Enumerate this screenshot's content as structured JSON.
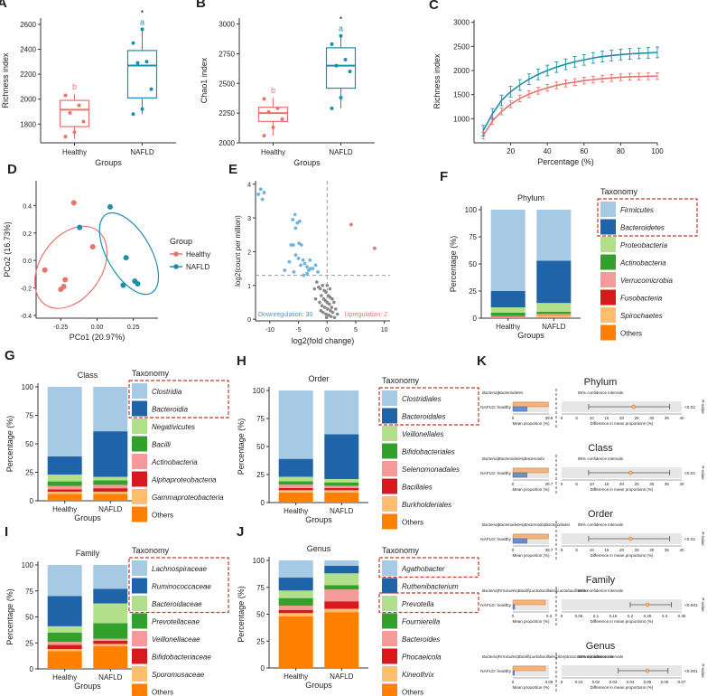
{
  "colors": {
    "healthy": "#e8746e",
    "nafld": "#1a8fad",
    "grey": "#888888",
    "dashbox": "#c0392b"
  },
  "panelA": {
    "letter": "A",
    "ylabel": "Richness index",
    "xlabel": "Groups",
    "ylim": [
      1650,
      2650
    ],
    "yticks": [
      1800,
      2000,
      2200,
      2400,
      2600
    ],
    "categories": [
      "Healthy",
      "NAFLD"
    ],
    "boxes": [
      {
        "q1": 1780,
        "median": 1915,
        "q3": 1990,
        "min": 1680,
        "max": 2040,
        "points": [
          1700,
          1735,
          1820,
          1890,
          1950,
          2030
        ]
      },
      {
        "q1": 2010,
        "median": 2270,
        "q3": 2390,
        "min": 1880,
        "max": 2560,
        "points": [
          1880,
          1920,
          2080,
          2290,
          2300,
          2450,
          2560
        ]
      }
    ],
    "sig_letters": [
      "b",
      "a"
    ],
    "star": "*"
  },
  "panelB": {
    "letter": "B",
    "ylabel": "Chao1 index",
    "xlabel": "Groups",
    "ylim": [
      2000,
      3050
    ],
    "yticks": [
      2000,
      2250,
      2500,
      2750,
      3000
    ],
    "categories": [
      "Healthy",
      "NAFLD"
    ],
    "boxes": [
      {
        "q1": 2180,
        "median": 2250,
        "q3": 2300,
        "min": 2060,
        "max": 2380,
        "points": [
          2060,
          2130,
          2200,
          2260,
          2290,
          2370
        ]
      },
      {
        "q1": 2460,
        "median": 2650,
        "q3": 2800,
        "min": 2290,
        "max": 2900,
        "points": [
          2290,
          2380,
          2600,
          2650,
          2700,
          2830,
          2900
        ]
      }
    ],
    "sig_letters": [
      "b",
      "a"
    ],
    "star": "*"
  },
  "panelC": {
    "letter": "C",
    "ylabel": "Richness index",
    "xlabel": "Percentage (%)",
    "xlim": [
      0,
      100
    ],
    "ylim": [
      500,
      3050
    ],
    "xticks": [
      20,
      40,
      60,
      80,
      100
    ],
    "yticks": [
      1000,
      1500,
      2000,
      2500,
      3000
    ],
    "x": [
      5,
      10,
      15,
      20,
      25,
      30,
      35,
      40,
      45,
      50,
      55,
      60,
      65,
      70,
      75,
      80,
      85,
      90,
      95,
      100
    ],
    "series": [
      {
        "name": "Healthy",
        "values": [
          650,
          950,
          1150,
          1300,
          1420,
          1510,
          1580,
          1640,
          1690,
          1730,
          1760,
          1790,
          1810,
          1830,
          1845,
          1860,
          1870,
          1875,
          1880,
          1885
        ],
        "err": 70
      },
      {
        "name": "NAFLD",
        "values": [
          750,
          1100,
          1380,
          1560,
          1700,
          1820,
          1920,
          2000,
          2070,
          2130,
          2180,
          2220,
          2260,
          2290,
          2310,
          2330,
          2345,
          2355,
          2365,
          2375
        ],
        "err": 110
      }
    ]
  },
  "panelD": {
    "letter": "D",
    "xlabel": "PCo1 (20.97%)",
    "ylabel": "PCo2 (16.73%)",
    "xlim": [
      -0.42,
      0.42
    ],
    "ylim": [
      -0.42,
      0.58
    ],
    "xticks": [
      -0.25,
      0,
      0.25
    ],
    "xtick_labels": [
      "-0.25",
      "0.00",
      "0.25"
    ],
    "yticks": [
      -0.4,
      -0.2,
      0,
      0.2,
      0.4
    ],
    "ytick_labels": [
      "-0.4",
      "-0.2",
      "0.0",
      "0.2",
      "0.4"
    ],
    "legend_title": "Group",
    "legend": [
      "Healthy",
      "NAFLD"
    ],
    "points": [
      {
        "g": 0,
        "x": -0.36,
        "y": -0.07
      },
      {
        "g": 0,
        "x": -0.22,
        "y": -0.14
      },
      {
        "g": 0,
        "x": -0.23,
        "y": -0.19
      },
      {
        "g": 0,
        "x": -0.25,
        "y": -0.21
      },
      {
        "g": 0,
        "x": -0.03,
        "y": 0.1
      },
      {
        "g": 0,
        "x": -0.16,
        "y": 0.42
      },
      {
        "g": 1,
        "x": -0.12,
        "y": 0.24
      },
      {
        "g": 1,
        "x": 0.09,
        "y": 0.39
      },
      {
        "g": 1,
        "x": 0.2,
        "y": 0.02
      },
      {
        "g": 1,
        "x": 0.26,
        "y": -0.15
      },
      {
        "g": 1,
        "x": 0.28,
        "y": -0.17
      },
      {
        "g": 1,
        "x": 0.18,
        "y": -0.18
      }
    ],
    "ellipses": [
      {
        "g": 0,
        "cx": -0.18,
        "cy": -0.05,
        "rx": 0.21,
        "ry": 0.33,
        "angle": 35
      },
      {
        "g": 1,
        "cx": 0.22,
        "cy": 0.05,
        "rx": 0.15,
        "ry": 0.33,
        "angle": -30
      }
    ]
  },
  "panelE": {
    "letter": "E",
    "xlabel": "log2(fold change)",
    "ylabel": "log2(count per million)",
    "xlim": [
      -12.5,
      11
    ],
    "ylim": [
      -0.05,
      4.1
    ],
    "xticks": [
      -10,
      -5,
      0,
      5,
      10
    ],
    "yticks": [
      0,
      1,
      2,
      3,
      4
    ],
    "threshold_y": 1.3,
    "down_label": "Downregulation: 30",
    "up_label": "Upregulation: 2",
    "up_points": [
      [
        4.2,
        2.8
      ],
      [
        8.3,
        2.1
      ]
    ],
    "down_points": [
      [
        -11.6,
        3.85
      ],
      [
        -11.0,
        3.75
      ],
      [
        -11.3,
        3.55
      ],
      [
        -12.0,
        3.7
      ],
      [
        -5.6,
        3.1
      ],
      [
        -6.0,
        2.95
      ],
      [
        -4.8,
        2.9
      ],
      [
        -5.2,
        2.85
      ],
      [
        -5.5,
        2.7
      ],
      [
        -6.3,
        2.2
      ],
      [
        -5.9,
        2.2
      ],
      [
        -4.9,
        2.25
      ],
      [
        -4.5,
        2.2
      ],
      [
        -5.5,
        1.9
      ],
      [
        -5.0,
        1.8
      ],
      [
        -4.2,
        1.75
      ],
      [
        -3.9,
        1.65
      ],
      [
        -4.6,
        1.6
      ],
      [
        -3.5,
        1.55
      ],
      [
        -2.9,
        1.5
      ],
      [
        -3.2,
        1.45
      ],
      [
        -5.8,
        1.4
      ],
      [
        -3.5,
        1.35
      ],
      [
        -1.6,
        1.4
      ],
      [
        -4.1,
        1.3
      ],
      [
        -2.5,
        1.5
      ],
      [
        -6.6,
        1.7
      ],
      [
        -7.4,
        1.45
      ],
      [
        -2.0,
        1.6
      ],
      [
        -3.0,
        1.75
      ]
    ],
    "ns_points": [
      [
        -1.8,
        1.1
      ],
      [
        -1.5,
        0.95
      ],
      [
        -1.2,
        0.9
      ],
      [
        -0.8,
        1.0
      ],
      [
        -0.5,
        0.85
      ],
      [
        -0.2,
        0.8
      ],
      [
        0.2,
        0.7
      ],
      [
        0.5,
        0.65
      ],
      [
        0.9,
        0.6
      ],
      [
        1.2,
        0.5
      ],
      [
        -1.0,
        0.7
      ],
      [
        -0.6,
        0.6
      ],
      [
        -0.3,
        0.55
      ],
      [
        0.0,
        0.5
      ],
      [
        0.4,
        0.45
      ],
      [
        0.8,
        0.35
      ],
      [
        1.5,
        0.3
      ],
      [
        -1.3,
        0.5
      ],
      [
        -0.9,
        0.4
      ],
      [
        -0.4,
        0.35
      ],
      [
        0.1,
        0.3
      ],
      [
        0.6,
        0.25
      ],
      [
        1.0,
        0.2
      ],
      [
        -0.7,
        0.2
      ],
      [
        -0.2,
        0.15
      ],
      [
        0.3,
        0.12
      ],
      [
        0.7,
        0.08
      ],
      [
        -1.1,
        0.25
      ],
      [
        1.8,
        0.15
      ],
      [
        -2.2,
        0.9
      ],
      [
        -2.0,
        0.6
      ],
      [
        0.0,
        1.0
      ],
      [
        0.5,
        0.9
      ],
      [
        -0.1,
        0.05
      ],
      [
        1.3,
        0.05
      ]
    ]
  },
  "stacked": [
    {
      "id": "F",
      "letter": "F",
      "title": "Phylum",
      "ylabel": "Percentage (%)",
      "xlabel": "Groups",
      "categories": [
        "Healthy",
        "NAFLD"
      ],
      "legend_title": "Taxonomy",
      "boxed": 2,
      "series": [
        {
          "name": "Firmicutes",
          "color": "#a6cae3",
          "values": [
            75,
            47
          ]
        },
        {
          "name": "Bacteroidetes",
          "color": "#1f63a8",
          "values": [
            15,
            39
          ]
        },
        {
          "name": "Proteobacteria",
          "color": "#b2df8a",
          "values": [
            5,
            8
          ]
        },
        {
          "name": "Actinobacteria",
          "color": "#33a02c",
          "values": [
            3,
            2
          ]
        },
        {
          "name": "Verrucomicrobia",
          "color": "#f49b9a",
          "values": [
            0.5,
            0.5
          ]
        },
        {
          "name": "Fusobacteria",
          "color": "#d7191c",
          "values": [
            0.5,
            0.5
          ]
        },
        {
          "name": "Spirochaetes",
          "color": "#fdbf6f",
          "values": [
            0.5,
            2
          ]
        },
        {
          "name": "Others",
          "color": "#ff7f00",
          "values": [
            0.5,
            1
          ]
        }
      ]
    },
    {
      "id": "G",
      "letter": "G",
      "title": "Class",
      "ylabel": "Percentage (%)",
      "xlabel": "Groups",
      "categories": [
        "Healthy",
        "NAFLD"
      ],
      "legend_title": "Taxonomy",
      "boxed": 2,
      "series": [
        {
          "name": "Clostridia",
          "color": "#a6cae3",
          "values": [
            61,
            39
          ]
        },
        {
          "name": "Bacteroidia",
          "color": "#1f63a8",
          "values": [
            16,
            40
          ]
        },
        {
          "name": "Negativicutes",
          "color": "#b2df8a",
          "values": [
            6,
            3
          ]
        },
        {
          "name": "Bacilli",
          "color": "#33a02c",
          "values": [
            4,
            4
          ]
        },
        {
          "name": "Actinobacteria",
          "color": "#f49b9a",
          "values": [
            3,
            3
          ]
        },
        {
          "name": "Alphaproteobacteria",
          "color": "#d7191c",
          "values": [
            2,
            3
          ]
        },
        {
          "name": "Gammaproteobacteria",
          "color": "#fdbf6f",
          "values": [
            2,
            2
          ]
        },
        {
          "name": "Others",
          "color": "#ff7f00",
          "values": [
            6,
            6
          ]
        }
      ]
    },
    {
      "id": "H",
      "letter": "H",
      "title": "Order",
      "ylabel": "Percentage (%)",
      "xlabel": "Groups",
      "categories": [
        "Healthy",
        "NAFLD"
      ],
      "legend_title": "Taxonomy",
      "boxed": 2,
      "series": [
        {
          "name": "Clostridiales",
          "color": "#a6cae3",
          "values": [
            61,
            39
          ]
        },
        {
          "name": "Bacteroidales",
          "color": "#1f63a8",
          "values": [
            16,
            40
          ]
        },
        {
          "name": "Veillonellales",
          "color": "#b2df8a",
          "values": [
            4,
            3
          ]
        },
        {
          "name": "Bifidobacteriales",
          "color": "#33a02c",
          "values": [
            3,
            3
          ]
        },
        {
          "name": "Selenomonadales",
          "color": "#f49b9a",
          "values": [
            3,
            2
          ]
        },
        {
          "name": "Bacillales",
          "color": "#d7191c",
          "values": [
            2,
            2
          ]
        },
        {
          "name": "Burkholderiales",
          "color": "#fdbf6f",
          "values": [
            2,
            2
          ]
        },
        {
          "name": "Others",
          "color": "#ff7f00",
          "values": [
            9,
            9
          ]
        }
      ]
    },
    {
      "id": "I",
      "letter": "I",
      "title": "Family",
      "ylabel": "Percentage (%)",
      "xlabel": "Groups",
      "categories": [
        "Healthy",
        "NAFLD"
      ],
      "legend_title": "Taxonomy",
      "boxed": 3,
      "series": [
        {
          "name": "Lachnospiraceae",
          "color": "#a6cae3",
          "values": [
            30,
            23
          ]
        },
        {
          "name": "Ruminococcaceae",
          "color": "#1f63a8",
          "values": [
            29,
            14
          ]
        },
        {
          "name": "Bacteroidaceae",
          "color": "#b2df8a",
          "values": [
            6,
            19
          ]
        },
        {
          "name": "Prevotellaceae",
          "color": "#33a02c",
          "values": [
            9,
            15
          ]
        },
        {
          "name": "Veillonellaceae",
          "color": "#f49b9a",
          "values": [
            3,
            2
          ]
        },
        {
          "name": "Bifidobacteriaceae",
          "color": "#d7191c",
          "values": [
            4,
            3
          ]
        },
        {
          "name": "Sporomusaceae",
          "color": "#fdbf6f",
          "values": [
            2,
            2
          ]
        },
        {
          "name": "Others",
          "color": "#ff7f00",
          "values": [
            17,
            22
          ]
        }
      ]
    },
    {
      "id": "J",
      "letter": "J",
      "title": "Genus",
      "ylabel": "Percentage (%)",
      "xlabel": "Groups",
      "categories": [
        "Healthy",
        "NAFLD"
      ],
      "legend_title": "Taxonomy",
      "boxed": [
        0,
        2
      ],
      "series": [
        {
          "name": "Agathobacter",
          "color": "#a6cae3",
          "values": [
            16,
            5
          ]
        },
        {
          "name": "Ruthenibacterium",
          "color": "#1f63a8",
          "values": [
            12,
            7
          ]
        },
        {
          "name": "Prevotella",
          "color": "#b2df8a",
          "values": [
            7,
            11
          ]
        },
        {
          "name": "Fournierella",
          "color": "#33a02c",
          "values": [
            7,
            4
          ]
        },
        {
          "name": "Bacteroides",
          "color": "#f49b9a",
          "values": [
            4,
            11
          ]
        },
        {
          "name": "Phocaeicola",
          "color": "#d7191c",
          "values": [
            3,
            7
          ]
        },
        {
          "name": "Kineothrix",
          "color": "#fdbf6f",
          "values": [
            3,
            3
          ]
        },
        {
          "name": "Others",
          "color": "#ff7f00",
          "values": [
            48,
            52
          ]
        }
      ]
    }
  ],
  "panelK": {
    "letter": "K",
    "ci_label": "95% confidence intervals",
    "row_label": "NAFLD: healthy",
    "pval_label": "P-value",
    "left_xlabel": "Mean proportion (%)",
    "right_xlabel": "Difference in mean proportions (%)",
    "blocks": [
      {
        "title": "Phylum",
        "taxon": "Bacteria|Bacteroidetes",
        "left_max": "39.8",
        "healthy_frac": 0.39,
        "nafld_frac": 0.98,
        "ticks": [
          "0",
          "5",
          "10",
          "15",
          "20",
          "25",
          "30",
          "35",
          "40"
        ],
        "tmax": 40,
        "est": 24,
        "lo": 9,
        "hi": 36,
        "pval": "<0.01"
      },
      {
        "title": "Class",
        "taxon": "Bacteria|Bacteroidetes|Bacteroidia",
        "left_max": "39.7",
        "healthy_frac": 0.39,
        "nafld_frac": 0.98,
        "ticks": [
          "0",
          "5",
          "10",
          "15",
          "20",
          "25",
          "30",
          "35",
          "40"
        ],
        "tmax": 40,
        "est": 23,
        "lo": 9,
        "hi": 36,
        "pval": "<0.01"
      },
      {
        "title": "Order",
        "taxon": "Bacteria|Bacteroidetes|Bacteroidia|Bacteroidales",
        "left_max": "39.7",
        "healthy_frac": 0.39,
        "nafld_frac": 0.98,
        "ticks": [
          "0",
          "5",
          "10",
          "15",
          "20",
          "25",
          "30",
          "35",
          "40"
        ],
        "tmax": 40,
        "est": 23,
        "lo": 9,
        "hi": 36,
        "pval": "<0.01"
      },
      {
        "title": "Family",
        "taxon": "Bacteria|Firmicutes|Bacilli|Lactobacillales|Lactobacillaceae",
        "left_max": "0.3",
        "healthy_frac": 0.05,
        "nafld_frac": 0.9,
        "ticks": [
          "0",
          "0.05",
          "0.1",
          "0.15",
          "0.2",
          "0.25",
          "0.3",
          "0.35"
        ],
        "tmax": 0.35,
        "est": 0.25,
        "lo": 0.2,
        "hi": 0.32,
        "pval": "<0.001"
      },
      {
        "title": "Genus",
        "taxon": "Bacteria|Firmicutes|Bacilli|Lactobacillales|Streptococcaceae|Lactococcus",
        "left_max": "0.08",
        "healthy_frac": 0.04,
        "nafld_frac": 0.9,
        "ticks": [
          "0",
          "0.01",
          "0.02",
          "0.03",
          "0.04",
          "0.05",
          "0.06",
          "0.07"
        ],
        "tmax": 0.07,
        "est": 0.05,
        "lo": 0.033,
        "hi": 0.062,
        "pval": "<0.001"
      }
    ]
  }
}
